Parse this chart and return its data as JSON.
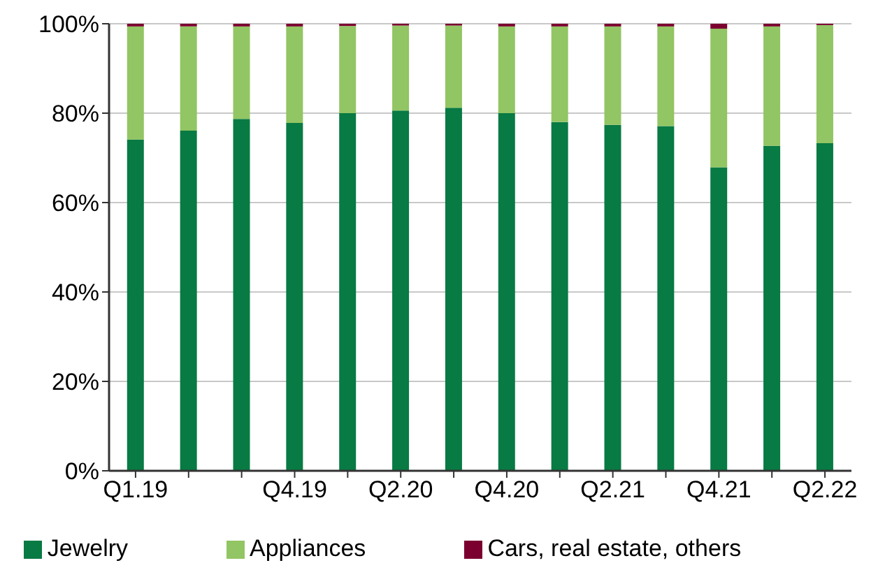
{
  "chart_data": {
    "type": "bar",
    "stacked": true,
    "categories": [
      "Q1.19",
      null,
      null,
      "Q4.19",
      null,
      "Q2.20",
      null,
      "Q4.20",
      null,
      "Q2.21",
      null,
      "Q4.21",
      null,
      "Q2.22"
    ],
    "series": [
      {
        "name": "Jewelry",
        "color": "#087a43",
        "values": [
          74.1,
          76.1,
          78.7,
          77.8,
          80,
          80.6,
          81.2,
          80,
          78,
          77.4,
          77.1,
          67.9,
          72.7,
          73.3
        ]
      },
      {
        "name": "Appliances",
        "color": "#92c563",
        "values": [
          25.3,
          23.3,
          20.7,
          21.6,
          19.5,
          19.0,
          18.4,
          19.4,
          21.4,
          22.0,
          22.3,
          31.0,
          26.7,
          26.4
        ]
      },
      {
        "name": "Cars, real estate, others",
        "color": "#7b0030",
        "values": [
          0.6,
          0.6,
          0.6,
          0.6,
          0.5,
          0.4,
          0.4,
          0.6,
          0.6,
          0.6,
          0.6,
          1.1,
          0.6,
          0.3
        ]
      }
    ],
    "ylim": [
      0,
      100
    ],
    "yticks": [
      {
        "value": 0,
        "label": "0%"
      },
      {
        "value": 20,
        "label": "20%"
      },
      {
        "value": 40,
        "label": "40%"
      },
      {
        "value": 60,
        "label": "60%"
      },
      {
        "value": 80,
        "label": "80%"
      },
      {
        "value": 100,
        "label": "100%"
      }
    ],
    "grid": "y",
    "legend": "bottom"
  }
}
